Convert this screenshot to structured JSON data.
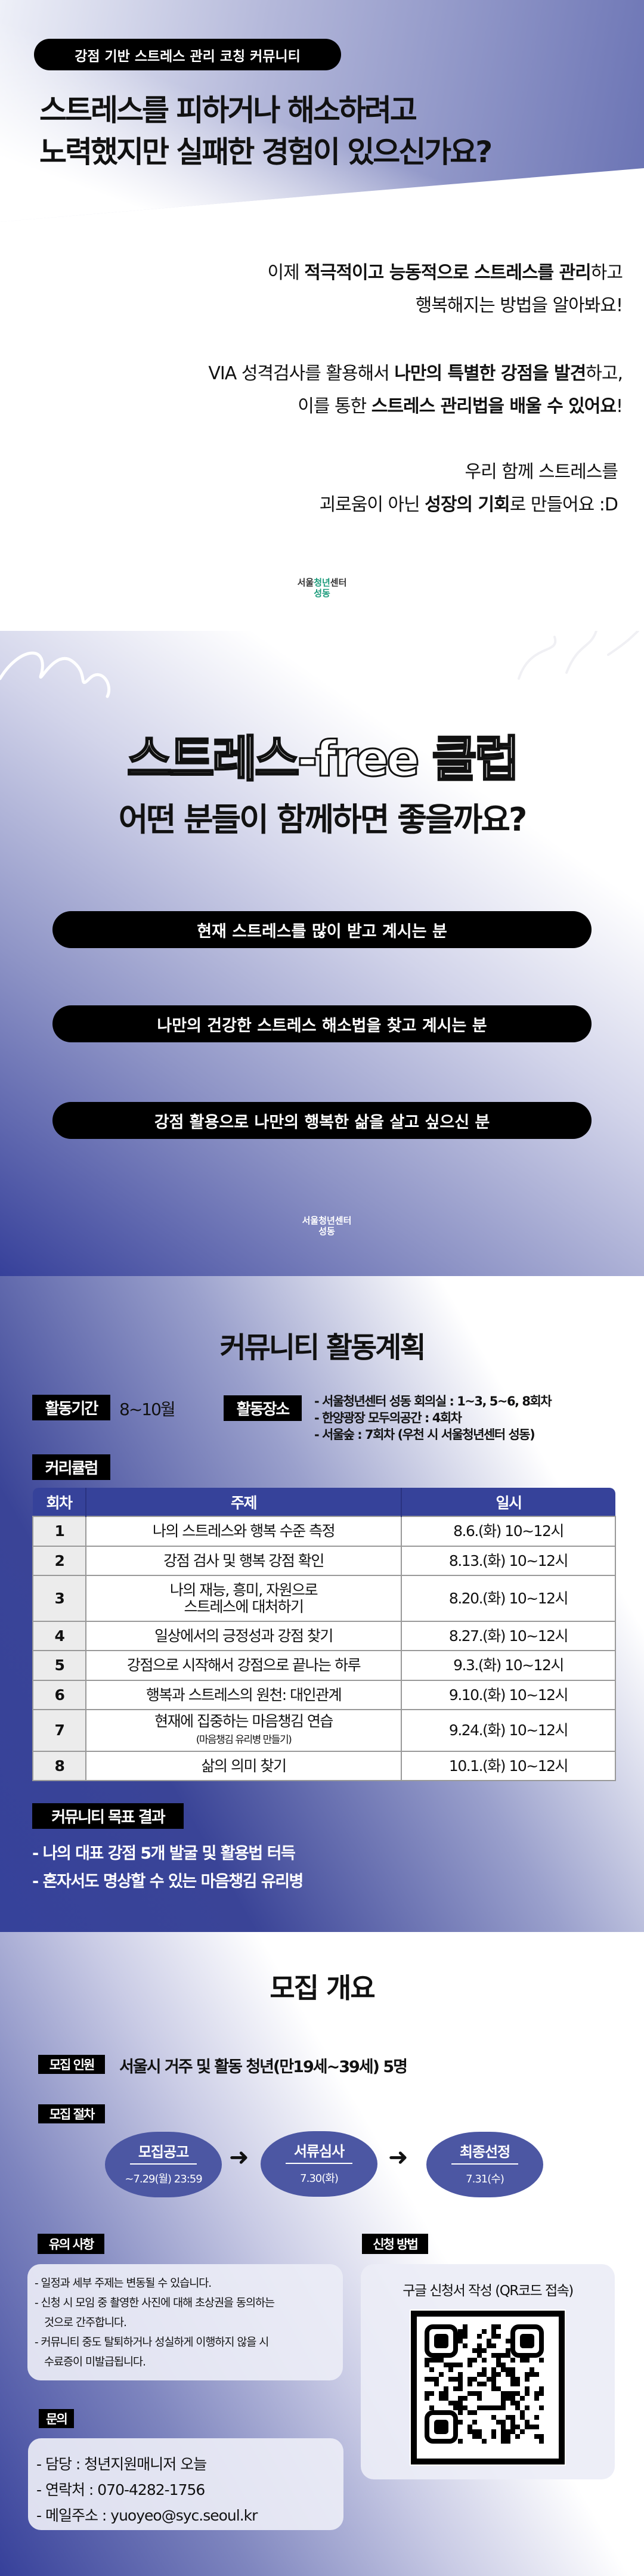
{
  "intro": {
    "badge": "강점 기반 스트레스 관리 코칭 커뮤니티",
    "headline": [
      "스트레스를 피하거나 해소하려고",
      "노력했지만 실패한 경험이 있으신가요?"
    ],
    "p1": {
      "l1a": "이제 ",
      "l1b": "적극적이고 능동적으로 스트레스를 관리",
      "l1c": "하고",
      "l2": "행복해지는 방법을 알아봐요!"
    },
    "p2": {
      "l1a": "VIA 성격검사를 활용해서 ",
      "l1b": "나만의 특별한 강점을 발견",
      "l1c": "하고,",
      "l2a": "이를 통한 ",
      "l2b": "스트레스 관리법을 배울 수 있어요",
      "l2c": "!"
    },
    "p3": {
      "l1": "우리 함께 스트레스를",
      "l2a": "괴로움이 아닌 ",
      "l2b": "성장의 기회",
      "l2c": "로 만들어요 :D"
    },
    "logo": {
      "a": "서울",
      "b": "청년",
      "c": "센터",
      "d": "성동"
    }
  },
  "club": {
    "title": "스트레스-free 클럽",
    "subtitle": "어떤 분들이 함께하면 좋을까요?",
    "targets": [
      "현재 스트레스를 많이 받고 계시는 분",
      "나만의 건강한 스트레스 해소법을 찾고 계시는 분",
      "강점 활용으로 나만의 행복한 삶을 살고 싶으신 분"
    ]
  },
  "plan": {
    "title": "커뮤니티 활동계획",
    "period_label": "활동기간",
    "period": "8~10월",
    "place_label": "활동장소",
    "places": [
      "- 서울청년센터 성동 회의실 : 1~3, 5~6, 8회차",
      "- 한양광장 모두의공간 : 4회차",
      "- 서울숲 : 7회차 (우천 시 서울청년센터 성동)"
    ],
    "curriculum_label": "커리큘럼",
    "columns": [
      "회차",
      "주제",
      "일시"
    ],
    "rows": [
      {
        "n": "1",
        "topic": "나의 스트레스와 행복 수준 측정",
        "date": "8.6.(화) 10~12시"
      },
      {
        "n": "2",
        "topic": "강점 검사 및 행복 강점 확인",
        "date": "8.13.(화) 10~12시"
      },
      {
        "n": "3",
        "topic": "나의 재능, 흥미, 자원으로",
        "topic2": "스트레스에 대처하기",
        "date": "8.20.(화) 10~12시"
      },
      {
        "n": "4",
        "topic": "일상에서의 긍정성과 강점 찾기",
        "date": "8.27.(화) 10~12시"
      },
      {
        "n": "5",
        "topic": "강점으로 시작해서 강점으로 끝나는 하루",
        "date": "9.3.(화) 10~12시"
      },
      {
        "n": "6",
        "topic": "행복과 스트레스의 원천: 대인관계",
        "date": "9.10.(화) 10~12시"
      },
      {
        "n": "7",
        "topic": "현재에 집중하는 마음챙김 연습",
        "topic2": "(마음챙김 유리병 만들기)",
        "date": "9.24.(화) 10~12시"
      },
      {
        "n": "8",
        "topic": "삶의 의미 찾기",
        "date": "10.1.(화) 10~12시"
      }
    ],
    "goal_label": "커뮤니티 목표 결과",
    "goals": [
      "- 나의 대표 강점 5개 발굴 및 활용법 터득",
      "- 혼자서도 명상할 수 있는 마음챙김 유리병"
    ]
  },
  "recruit": {
    "title": "모집 개요",
    "people_label": "모집 인원",
    "people": "서울시 거주 및 활동 청년(만19세~39세) 5명",
    "process_label": "모집 절차",
    "steps": [
      {
        "t": "모집공고",
        "s": "~7.29(월) 23:59"
      },
      {
        "t": "서류심사",
        "s": "7.30(화)"
      },
      {
        "t": "최종선정",
        "s": "7.31(수)"
      }
    ],
    "notice_label": "유의 사항",
    "notices": [
      "- 일정과 세부 주제는 변동될 수 있습니다.",
      "- 신청 시 모임 중 촬영한 사진에 대해 초상권을 동의하는",
      "것으로 간주합니다.",
      "- 커뮤니티 중도 탈퇴하거나 성실하게 이행하지 않을 시",
      "수료증이 미발급됩니다."
    ],
    "apply_label": "신청 방법",
    "apply": "구글 신청서 작성 (QR코드 접속)",
    "contact_label": "문의",
    "contacts": [
      "- 담당 : 청년지원매니저 오늘",
      "- 연락처 : 070-4282-1756",
      "- 메일주소 : yuoyeo@syc.seoul.kr"
    ]
  },
  "colors": {
    "accent": "#36429a",
    "circle": "#4c57a3",
    "logo_green": "#1a9a7a"
  }
}
